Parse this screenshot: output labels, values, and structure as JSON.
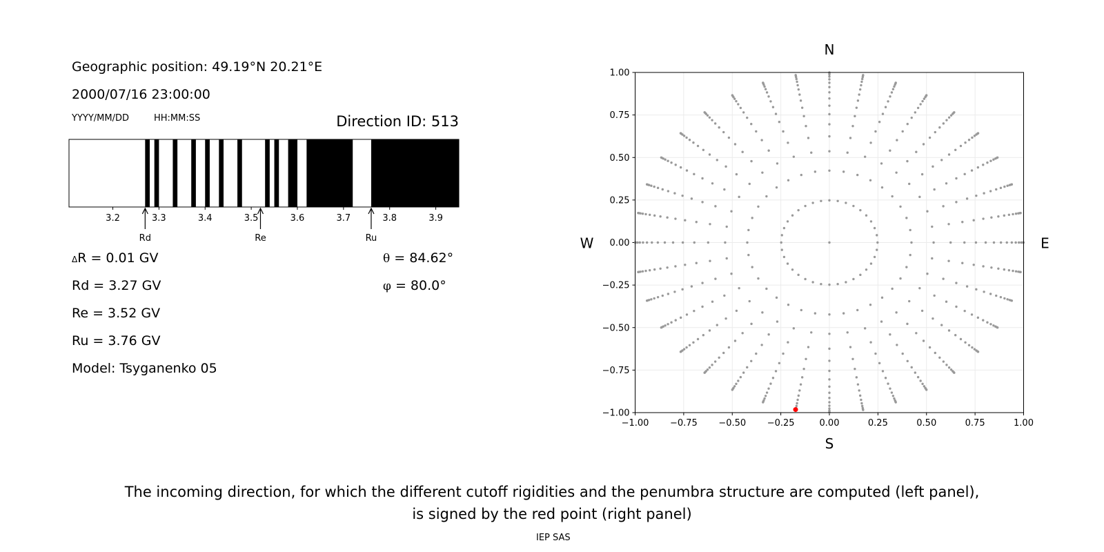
{
  "header": {
    "geo_position": "Geographic position: 49.19°N 20.21°E",
    "datetime": "2000/07/16 23:00:00",
    "date_format": "YYYY/MM/DD",
    "time_format": "HH:MM:SS",
    "direction_id": "Direction ID: 513"
  },
  "values": {
    "delta_symbol": "Δ",
    "delta_r": "R = 0.01 GV",
    "rd": "Rd = 3.27 GV",
    "re": "Re = 3.52 GV",
    "ru": "Ru = 3.76 GV",
    "model": "Model: Tsyganenko 05",
    "theta_symbol": "θ",
    "theta": " = 84.62°",
    "phi_symbol": "φ",
    "phi": " = 80.0°"
  },
  "caption": {
    "line1": "The incoming direction, for which the different cutoff rigidities and the penumbra structure are computed (left panel),",
    "line2": "is signed by the red point (right panel)",
    "footer": "IEP SAS"
  },
  "chart_data": [
    {
      "type": "bar",
      "xlim": [
        3.105,
        3.95
      ],
      "xticks": [
        "3.2",
        "3.3",
        "3.4",
        "3.5",
        "3.6",
        "3.7",
        "3.8",
        "3.9"
      ],
      "colors": {
        "forbidden": "#000000",
        "allowed": "#ffffff"
      },
      "forbidden_intervals": [
        [
          3.27,
          3.28
        ],
        [
          3.29,
          3.3
        ],
        [
          3.33,
          3.34
        ],
        [
          3.37,
          3.38
        ],
        [
          3.4,
          3.41
        ],
        [
          3.43,
          3.44
        ],
        [
          3.47,
          3.48
        ],
        [
          3.53,
          3.54
        ],
        [
          3.55,
          3.56
        ],
        [
          3.58,
          3.6
        ],
        [
          3.62,
          3.72
        ],
        [
          3.76,
          3.95
        ]
      ],
      "markers": [
        {
          "label": "Rd",
          "value": 3.27
        },
        {
          "label": "Re",
          "value": 3.52
        },
        {
          "label": "Ru",
          "value": 3.76
        }
      ]
    },
    {
      "type": "scatter",
      "xlim": [
        -1,
        1
      ],
      "ylim": [
        -1,
        1
      ],
      "xticks": [
        "−1.00",
        "−0.75",
        "−0.50",
        "−0.25",
        "0.00",
        "0.25",
        "0.50",
        "0.75",
        "1.00"
      ],
      "yticks": [
        "−1.00",
        "−0.75",
        "−0.50",
        "−0.25",
        "0.00",
        "0.25",
        "0.50",
        "0.75",
        "1.00"
      ],
      "grid": true,
      "compass": {
        "north": "N",
        "south": "S",
        "east": "E",
        "west": "W"
      },
      "point_color": "#999999",
      "ring_radii": [
        0,
        0.248,
        0.4227,
        0.5367,
        0.6242,
        0.6953,
        0.7546,
        0.8047,
        0.8472,
        0.8833,
        0.9138,
        0.9391,
        0.9596,
        0.9758,
        0.9877,
        0.9956,
        0.9995
      ],
      "azimuth_step_deg": 10,
      "selected_point": {
        "x": -0.174,
        "y": -0.982,
        "color": "#ff0000"
      }
    }
  ]
}
